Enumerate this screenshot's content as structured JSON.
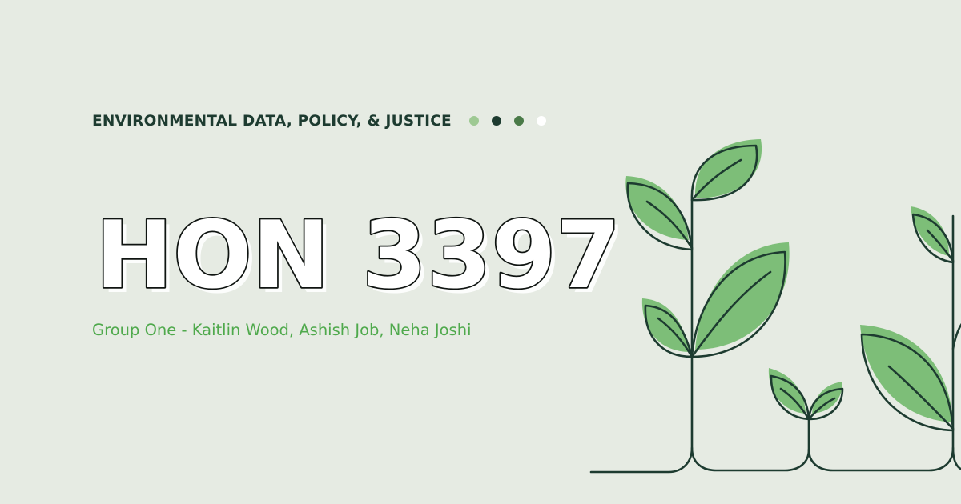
{
  "kicker": "ENVIRONMENTAL DATA, POLICY, & JUSTICE",
  "title": "HON 3397",
  "subtitle": "Group One - Kaitlin Wood, Ashish Job, Neha Joshi",
  "illustration": "sprouting-plants-illustration",
  "colors": {
    "background": "#e6ebe3",
    "dark_green": "#1d3b30",
    "medium_green": "#4a7a48",
    "light_green": "#9ec993",
    "leaf_fill": "#7dbe78",
    "accent_text": "#4fa94c",
    "white": "#ffffff"
  }
}
